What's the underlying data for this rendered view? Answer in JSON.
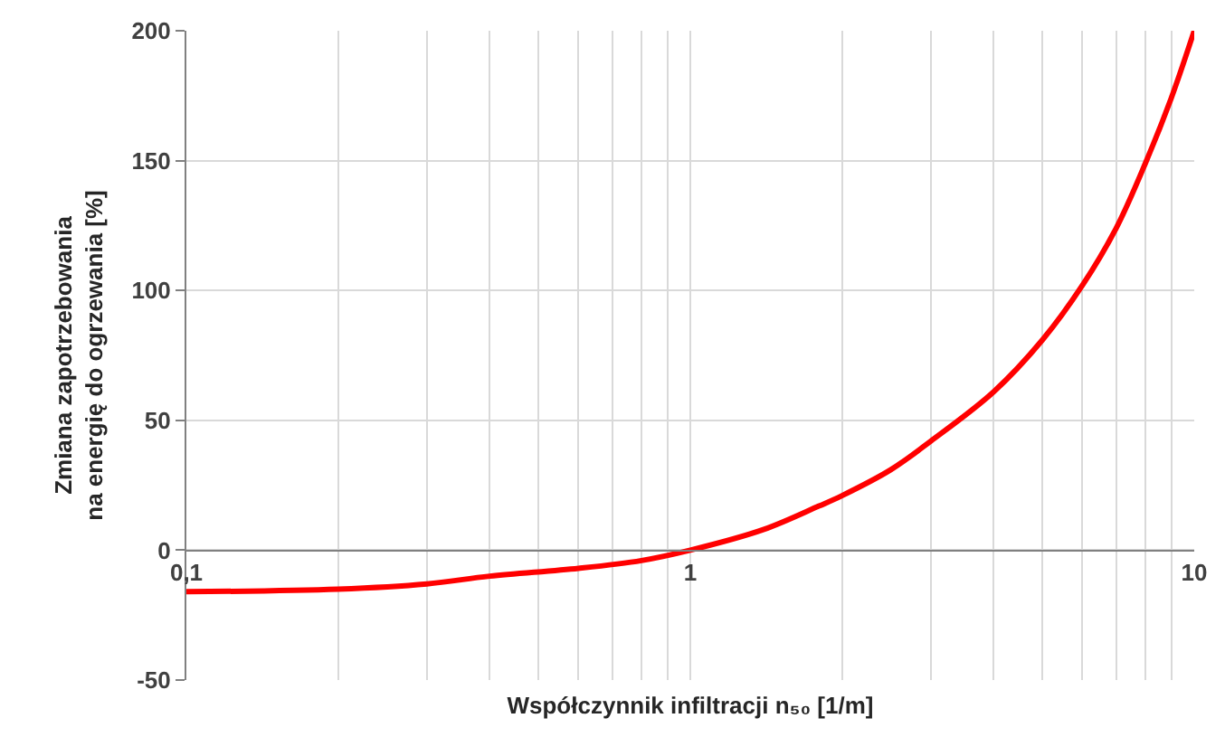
{
  "chart_data": {
    "type": "line",
    "xlabel": "Współczynnik infiltracji n₅₀ [1/m]",
    "ylabel": "Zmiana zapotrzebowania\nna energię do ogrzewania [%]",
    "x": [
      0.1,
      0.2,
      0.3,
      0.4,
      0.6,
      0.8,
      1,
      1.4,
      1.8,
      2,
      2.5,
      3,
      4,
      5,
      6,
      7,
      8,
      9,
      10
    ],
    "values": [
      -16,
      -15,
      -13,
      -10,
      -7,
      -4,
      0,
      8,
      17,
      21,
      31,
      42,
      61,
      81,
      102,
      124,
      149,
      174,
      200
    ],
    "color": "#ff0000",
    "line_style": "solid",
    "xlim": [
      0.1,
      10
    ],
    "ylim": [
      -50,
      200
    ],
    "xticks": [
      {
        "value": 0.1,
        "label": "0,1"
      },
      {
        "value": 0.2,
        "label": null
      },
      {
        "value": 0.3,
        "label": null
      },
      {
        "value": 0.4,
        "label": null
      },
      {
        "value": 0.5,
        "label": null
      },
      {
        "value": 0.6,
        "label": null
      },
      {
        "value": 0.7,
        "label": null
      },
      {
        "value": 0.8,
        "label": null
      },
      {
        "value": 0.9,
        "label": null
      },
      1,
      {
        "value": 2,
        "label": null
      },
      {
        "value": 3,
        "label": null
      },
      {
        "value": 4,
        "label": null
      },
      {
        "value": 5,
        "label": null
      },
      {
        "value": 6,
        "label": null
      },
      {
        "value": 7,
        "label": null
      },
      {
        "value": 8,
        "label": null
      },
      {
        "value": 9,
        "label": null
      },
      10
    ],
    "yticks": [
      -50,
      0,
      50,
      100,
      150,
      200
    ],
    "log": "x",
    "grid": true
  }
}
